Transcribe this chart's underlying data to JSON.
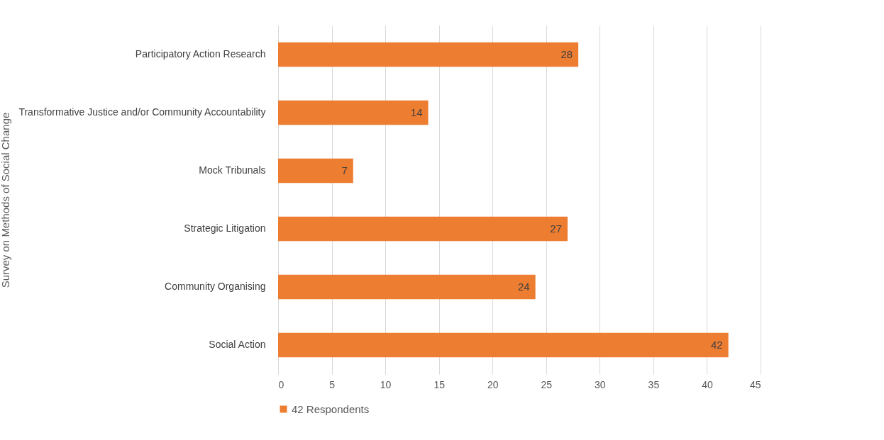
{
  "chart_data": {
    "type": "bar",
    "orientation": "horizontal",
    "ylabel": "Survey on Methods of Social Change",
    "categories": [
      "Participatory Action Research",
      "Transformative Justice and/or Community Accountability",
      "Mock Tribunals",
      "Strategic Litigation",
      "Community Organising",
      "Social Action"
    ],
    "series": [
      {
        "name": "42 Respondents",
        "color": "#ed7d31",
        "values": [
          28,
          14,
          7,
          27,
          24,
          42
        ]
      }
    ],
    "xlim": [
      0,
      45
    ],
    "xticks": [
      0,
      5,
      10,
      15,
      20,
      25,
      30,
      35,
      40,
      45
    ],
    "grid": "x",
    "legend": "bottom",
    "data_labels": true
  }
}
